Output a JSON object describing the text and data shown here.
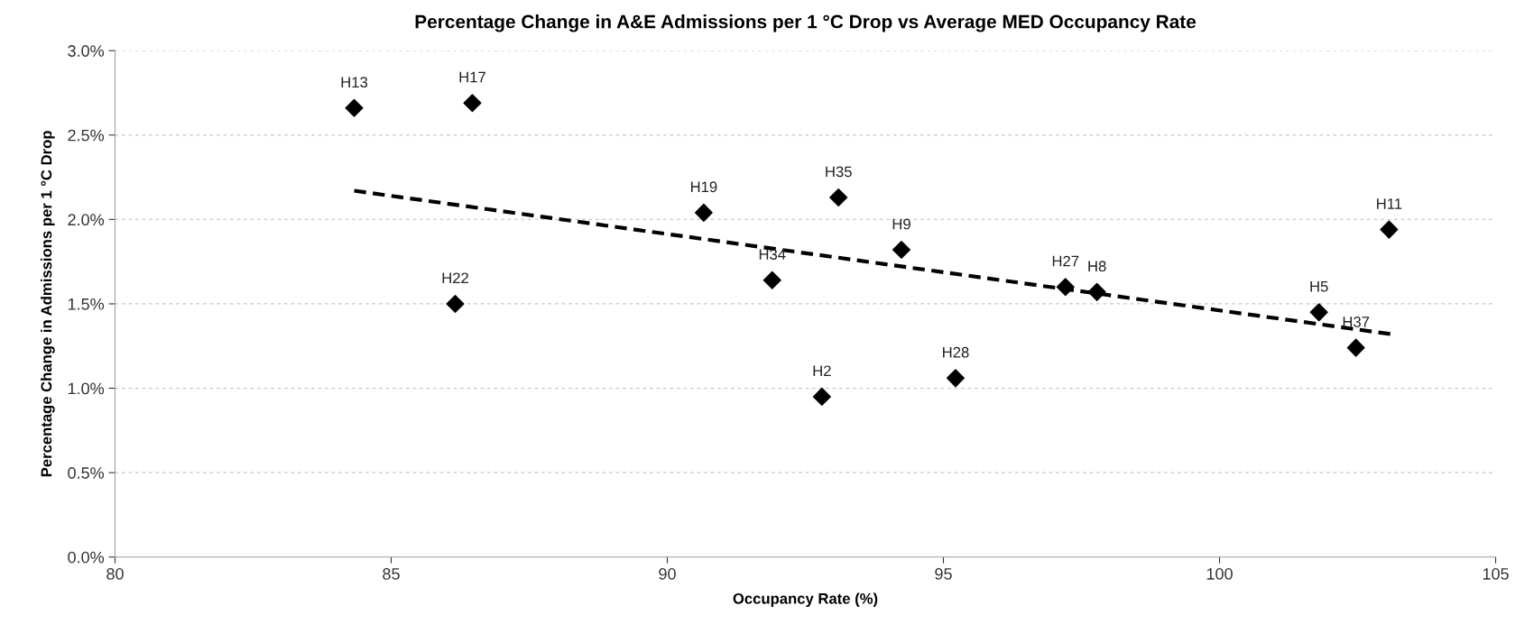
{
  "chart_data": {
    "type": "scatter",
    "title": "Percentage Change in A&E Admissions per 1 °C Drop vs Average MED Occupancy Rate",
    "xlabel": "Occupancy Rate (%)",
    "ylabel": "Percentage Change in Admissions per 1 °C Drop",
    "series": [
      {
        "color": "#000000",
        "marker": "diamond",
        "x": [
          84.33,
          86.47,
          90.66,
          91.9,
          86.16,
          93.1,
          94.24,
          92.8,
          95.22,
          97.21,
          97.78,
          101.8,
          102.47,
          103.07
        ],
        "values": [
          2.66,
          2.69,
          2.04,
          1.64,
          1.5,
          2.13,
          1.82,
          0.95,
          1.06,
          1.6,
          1.57,
          1.45,
          1.24,
          1.94
        ]
      },
      {
        "type": "line",
        "color": "#000000",
        "line_style": "dashed",
        "marker": "none",
        "x": [
          84.33,
          103.12
        ],
        "values": [
          2.17,
          1.32
        ]
      }
    ],
    "annotations": [
      {
        "text": "H13",
        "x": 84.33,
        "y": 2.66
      },
      {
        "text": "H17",
        "x": 86.47,
        "y": 2.69
      },
      {
        "text": "H19",
        "x": 90.66,
        "y": 2.04
      },
      {
        "text": "H34",
        "x": 91.9,
        "y": 1.64
      },
      {
        "text": "H22",
        "x": 86.16,
        "y": 1.5
      },
      {
        "text": "H35",
        "x": 93.1,
        "y": 2.13
      },
      {
        "text": "H9",
        "x": 94.24,
        "y": 1.82
      },
      {
        "text": "H2",
        "x": 92.8,
        "y": 0.95
      },
      {
        "text": "H28",
        "x": 95.22,
        "y": 1.06
      },
      {
        "text": "H27",
        "x": 97.21,
        "y": 1.6
      },
      {
        "text": "H8",
        "x": 97.78,
        "y": 1.57
      },
      {
        "text": "H5",
        "x": 101.8,
        "y": 1.45
      },
      {
        "text": "H37",
        "x": 102.47,
        "y": 1.24
      },
      {
        "text": "H11",
        "x": 103.07,
        "y": 1.94
      }
    ],
    "xlim": [
      80,
      105
    ],
    "xticks": [
      80,
      85,
      90,
      95,
      100,
      105
    ],
    "ylim": [
      0,
      3
    ],
    "yticks": [
      {
        "value": 0,
        "label": "0.0%"
      },
      {
        "value": 0.5,
        "label": "0.5%"
      },
      {
        "value": 1,
        "label": "1.0%"
      },
      {
        "value": 1.5,
        "label": "1.5%"
      },
      {
        "value": 2,
        "label": "2.0%"
      },
      {
        "value": 2.5,
        "label": "2.5%"
      },
      {
        "value": 3,
        "label": "3.0%"
      }
    ],
    "grid": "y"
  }
}
